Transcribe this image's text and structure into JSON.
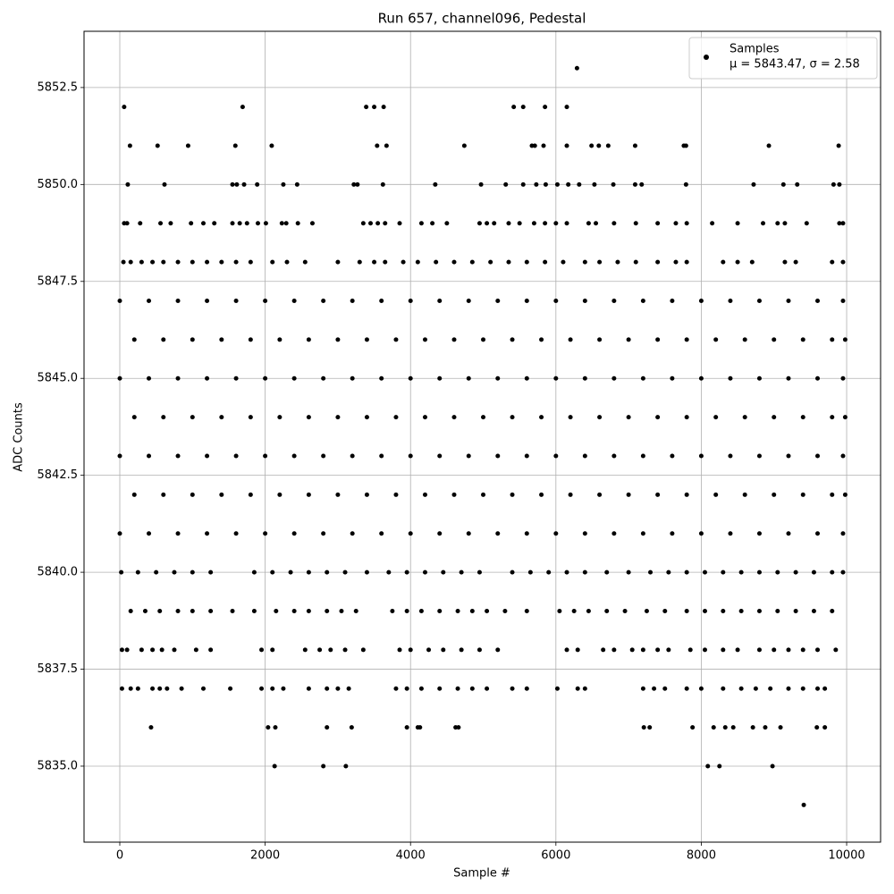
{
  "chart_data": {
    "type": "scatter",
    "title": "Run 657, channel096, Pedestal",
    "x_label": "Sample #",
    "y_label": "ADC Counts",
    "xlim": [
      -492,
      10467
    ],
    "ylim": [
      5833.04,
      5853.95
    ],
    "xticks": [
      0,
      2000,
      4000,
      6000,
      8000,
      10000
    ],
    "yticks": [
      {
        "value": 5835,
        "label": "5835.0"
      },
      5837.5,
      {
        "value": 5840,
        "label": "5840.0"
      },
      5842.5,
      {
        "value": 5845,
        "label": "5845.0"
      },
      5847.5,
      {
        "value": 5850,
        "label": "5850.0"
      },
      5852.5
    ],
    "grid": true,
    "legend_position": "upper right",
    "legend_stats": "μ = 5843.47, σ = 2.58",
    "series": [
      {
        "name": "Samples",
        "color": "#000000",
        "x": [
          6290,
          60,
          1690,
          3390,
          3500,
          3630,
          5420,
          5550,
          5850,
          6150,
          140,
          520,
          940,
          1590,
          2090,
          3540,
          3670,
          4740,
          5670,
          5710,
          5830,
          6150,
          6490,
          6590,
          6720,
          7090,
          7760,
          7790,
          8930,
          9890,
          110,
          615,
          1550,
          1610,
          1710,
          1890,
          2250,
          2440,
          3220,
          3270,
          3620,
          4340,
          4970,
          5310,
          5550,
          5730,
          5860,
          6020,
          6170,
          6320,
          6530,
          6790,
          7090,
          7180,
          7790,
          8720,
          9130,
          9320,
          9820,
          9900,
          60,
          100,
          280,
          560,
          700,
          980,
          1150,
          1300,
          1550,
          1650,
          1750,
          1900,
          2010,
          2230,
          2290,
          2450,
          2650,
          3350,
          3450,
          3550,
          3650,
          3850,
          4150,
          4300,
          4500,
          4950,
          5050,
          5150,
          5350,
          5500,
          5700,
          5850,
          6000,
          6150,
          6450,
          6550,
          6800,
          7100,
          7400,
          7650,
          7800,
          8150,
          8500,
          8850,
          9050,
          9150,
          9450,
          9900,
          9950,
          50,
          150,
          300,
          450,
          600,
          800,
          1000,
          1200,
          1400,
          1600,
          1800,
          2100,
          2300,
          2550,
          3000,
          3300,
          3500,
          3650,
          3900,
          4100,
          4350,
          4600,
          4850,
          5100,
          5350,
          5600,
          5850,
          6100,
          6400,
          6600,
          6850,
          7100,
          7400,
          7650,
          7800,
          8300,
          8500,
          8700,
          9150,
          9300,
          9800,
          9950,
          0,
          400,
          800,
          1200,
          1600,
          2000,
          2400,
          2800,
          3200,
          3600,
          4000,
          4400,
          4800,
          5200,
          5600,
          6000,
          6400,
          6800,
          7200,
          7600,
          8000,
          8400,
          8800,
          9200,
          9600,
          9950,
          200,
          600,
          1000,
          1400,
          1800,
          2200,
          2600,
          3000,
          3400,
          3800,
          4200,
          4600,
          5000,
          5400,
          5800,
          6200,
          6600,
          7000,
          7400,
          7800,
          8200,
          8600,
          9000,
          9400,
          9800,
          9980,
          0,
          400,
          800,
          1200,
          1600,
          2000,
          2400,
          2800,
          3200,
          3600,
          4000,
          4400,
          4800,
          5200,
          5600,
          6000,
          6400,
          6800,
          7200,
          7600,
          8000,
          8400,
          8800,
          9200,
          9600,
          9950,
          200,
          600,
          1000,
          1400,
          1800,
          2200,
          2600,
          3000,
          3400,
          3800,
          4200,
          4600,
          5000,
          5400,
          5800,
          6200,
          6600,
          7000,
          7400,
          7800,
          8200,
          8600,
          9000,
          9400,
          9800,
          9980,
          0,
          400,
          800,
          1200,
          1600,
          2000,
          2400,
          2800,
          3200,
          3600,
          4000,
          4400,
          4800,
          5200,
          5600,
          6000,
          6400,
          6800,
          7200,
          7600,
          8000,
          8400,
          8800,
          9200,
          9600,
          9950,
          200,
          600,
          1000,
          1400,
          1800,
          2200,
          2600,
          3000,
          3400,
          3800,
          4200,
          4600,
          5000,
          5400,
          5800,
          6200,
          6600,
          7000,
          7400,
          7800,
          8200,
          8600,
          9000,
          9400,
          9800,
          9980,
          0,
          400,
          800,
          1200,
          1600,
          2000,
          2400,
          2800,
          3200,
          3600,
          4000,
          4400,
          4800,
          5200,
          5600,
          6000,
          6400,
          6800,
          7200,
          7600,
          8000,
          8400,
          8800,
          9200,
          9600,
          9950,
          20,
          250,
          500,
          750,
          1000,
          1250,
          1850,
          2100,
          2350,
          2600,
          2850,
          3100,
          3400,
          3700,
          3950,
          4200,
          4450,
          4700,
          4950,
          5400,
          5650,
          5900,
          6150,
          6400,
          6700,
          7000,
          7300,
          7550,
          7800,
          8050,
          8300,
          8550,
          8800,
          9050,
          9300,
          9550,
          9800,
          9950,
          150,
          350,
          550,
          800,
          1000,
          1250,
          1550,
          1850,
          2150,
          2400,
          2600,
          2850,
          3050,
          3250,
          3750,
          3950,
          4150,
          4400,
          4650,
          4850,
          5050,
          5300,
          5600,
          6050,
          6250,
          6450,
          6700,
          6950,
          7250,
          7500,
          7800,
          8050,
          8300,
          8550,
          8800,
          9050,
          9300,
          9550,
          9800,
          30,
          100,
          300,
          450,
          580,
          750,
          1050,
          1250,
          1950,
          2100,
          2550,
          2750,
          2900,
          3100,
          3350,
          3850,
          4000,
          4250,
          4450,
          4700,
          4950,
          5200,
          6150,
          6300,
          6650,
          6800,
          7050,
          7200,
          7400,
          7550,
          7850,
          8050,
          8300,
          8500,
          8800,
          9000,
          9200,
          9400,
          9600,
          9850,
          30,
          150,
          250,
          450,
          550,
          650,
          850,
          1150,
          1520,
          1950,
          2100,
          2250,
          2600,
          2850,
          3000,
          3150,
          3800,
          3950,
          4150,
          4400,
          4650,
          4850,
          5050,
          5400,
          5600,
          6020,
          6300,
          6400,
          7200,
          7350,
          7500,
          7800,
          8000,
          8300,
          8550,
          8750,
          8950,
          9200,
          9400,
          9600,
          9700,
          430,
          2040,
          2140,
          2850,
          3190,
          3950,
          4100,
          4130,
          4620,
          4660,
          7210,
          7290,
          7880,
          8170,
          8330,
          8440,
          8710,
          8880,
          9090,
          9590,
          9700,
          2130,
          2800,
          3110,
          8090,
          8250,
          8980,
          9410
        ],
        "values": [
          5853,
          5852,
          5852,
          5852,
          5852,
          5852,
          5852,
          5852,
          5852,
          5852,
          5851,
          5851,
          5851,
          5851,
          5851,
          5851,
          5851,
          5851,
          5851,
          5851,
          5851,
          5851,
          5851,
          5851,
          5851,
          5851,
          5851,
          5851,
          5851,
          5851,
          5850,
          5850,
          5850,
          5850,
          5850,
          5850,
          5850,
          5850,
          5850,
          5850,
          5850,
          5850,
          5850,
          5850,
          5850,
          5850,
          5850,
          5850,
          5850,
          5850,
          5850,
          5850,
          5850,
          5850,
          5850,
          5850,
          5850,
          5850,
          5850,
          5850,
          5849,
          5849,
          5849,
          5849,
          5849,
          5849,
          5849,
          5849,
          5849,
          5849,
          5849,
          5849,
          5849,
          5849,
          5849,
          5849,
          5849,
          5849,
          5849,
          5849,
          5849,
          5849,
          5849,
          5849,
          5849,
          5849,
          5849,
          5849,
          5849,
          5849,
          5849,
          5849,
          5849,
          5849,
          5849,
          5849,
          5849,
          5849,
          5849,
          5849,
          5849,
          5849,
          5849,
          5849,
          5849,
          5849,
          5849,
          5849,
          5849,
          5848,
          5848,
          5848,
          5848,
          5848,
          5848,
          5848,
          5848,
          5848,
          5848,
          5848,
          5848,
          5848,
          5848,
          5848,
          5848,
          5848,
          5848,
          5848,
          5848,
          5848,
          5848,
          5848,
          5848,
          5848,
          5848,
          5848,
          5848,
          5848,
          5848,
          5848,
          5848,
          5848,
          5848,
          5848,
          5848,
          5848,
          5848,
          5848,
          5848,
          5848,
          5848,
          5847,
          5847,
          5847,
          5847,
          5847,
          5847,
          5847,
          5847,
          5847,
          5847,
          5847,
          5847,
          5847,
          5847,
          5847,
          5847,
          5847,
          5847,
          5847,
          5847,
          5847,
          5847,
          5847,
          5847,
          5847,
          5847,
          5846,
          5846,
          5846,
          5846,
          5846,
          5846,
          5846,
          5846,
          5846,
          5846,
          5846,
          5846,
          5846,
          5846,
          5846,
          5846,
          5846,
          5846,
          5846,
          5846,
          5846,
          5846,
          5846,
          5846,
          5846,
          5846,
          5845,
          5845,
          5845,
          5845,
          5845,
          5845,
          5845,
          5845,
          5845,
          5845,
          5845,
          5845,
          5845,
          5845,
          5845,
          5845,
          5845,
          5845,
          5845,
          5845,
          5845,
          5845,
          5845,
          5845,
          5845,
          5845,
          5844,
          5844,
          5844,
          5844,
          5844,
          5844,
          5844,
          5844,
          5844,
          5844,
          5844,
          5844,
          5844,
          5844,
          5844,
          5844,
          5844,
          5844,
          5844,
          5844,
          5844,
          5844,
          5844,
          5844,
          5844,
          5844,
          5843,
          5843,
          5843,
          5843,
          5843,
          5843,
          5843,
          5843,
          5843,
          5843,
          5843,
          5843,
          5843,
          5843,
          5843,
          5843,
          5843,
          5843,
          5843,
          5843,
          5843,
          5843,
          5843,
          5843,
          5843,
          5843,
          5842,
          5842,
          5842,
          5842,
          5842,
          5842,
          5842,
          5842,
          5842,
          5842,
          5842,
          5842,
          5842,
          5842,
          5842,
          5842,
          5842,
          5842,
          5842,
          5842,
          5842,
          5842,
          5842,
          5842,
          5842,
          5842,
          5841,
          5841,
          5841,
          5841,
          5841,
          5841,
          5841,
          5841,
          5841,
          5841,
          5841,
          5841,
          5841,
          5841,
          5841,
          5841,
          5841,
          5841,
          5841,
          5841,
          5841,
          5841,
          5841,
          5841,
          5841,
          5841,
          5840,
          5840,
          5840,
          5840,
          5840,
          5840,
          5840,
          5840,
          5840,
          5840,
          5840,
          5840,
          5840,
          5840,
          5840,
          5840,
          5840,
          5840,
          5840,
          5840,
          5840,
          5840,
          5840,
          5840,
          5840,
          5840,
          5840,
          5840,
          5840,
          5840,
          5840,
          5840,
          5840,
          5840,
          5840,
          5840,
          5840,
          5840,
          5839,
          5839,
          5839,
          5839,
          5839,
          5839,
          5839,
          5839,
          5839,
          5839,
          5839,
          5839,
          5839,
          5839,
          5839,
          5839,
          5839,
          5839,
          5839,
          5839,
          5839,
          5839,
          5839,
          5839,
          5839,
          5839,
          5839,
          5839,
          5839,
          5839,
          5839,
          5839,
          5839,
          5839,
          5839,
          5839,
          5839,
          5839,
          5839,
          5838,
          5838,
          5838,
          5838,
          5838,
          5838,
          5838,
          5838,
          5838,
          5838,
          5838,
          5838,
          5838,
          5838,
          5838,
          5838,
          5838,
          5838,
          5838,
          5838,
          5838,
          5838,
          5838,
          5838,
          5838,
          5838,
          5838,
          5838,
          5838,
          5838,
          5838,
          5838,
          5838,
          5838,
          5838,
          5838,
          5838,
          5838,
          5838,
          5838,
          5837,
          5837,
          5837,
          5837,
          5837,
          5837,
          5837,
          5837,
          5837,
          5837,
          5837,
          5837,
          5837,
          5837,
          5837,
          5837,
          5837,
          5837,
          5837,
          5837,
          5837,
          5837,
          5837,
          5837,
          5837,
          5837,
          5837,
          5837,
          5837,
          5837,
          5837,
          5837,
          5837,
          5837,
          5837,
          5837,
          5837,
          5837,
          5837,
          5837,
          5837,
          5836,
          5836,
          5836,
          5836,
          5836,
          5836,
          5836,
          5836,
          5836,
          5836,
          5836,
          5836,
          5836,
          5836,
          5836,
          5836,
          5836,
          5836,
          5836,
          5836,
          5836,
          5835,
          5835,
          5835,
          5835,
          5835,
          5835,
          5834
        ]
      }
    ]
  }
}
